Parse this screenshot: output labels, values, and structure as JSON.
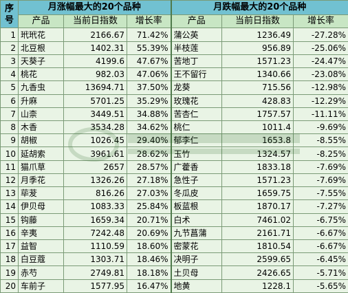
{
  "header": {
    "seq_label": "序号",
    "rise_title": "月涨幅最大的20个品种",
    "fall_title": "月跌幅最大的20个品种",
    "col_product": "产品",
    "col_index": "当前日指数",
    "col_rate": "增长率"
  },
  "rows": [
    {
      "n": "1",
      "rise_name": "玳玳花",
      "rise_index": "2166.67",
      "rise_rate": "71.42%",
      "fall_name": "蒲公英",
      "fall_index": "1236.49",
      "fall_rate": "-27.28%"
    },
    {
      "n": "2",
      "rise_name": "北豆根",
      "rise_index": "1402.31",
      "rise_rate": "55.39%",
      "fall_name": "半枝莲",
      "fall_index": "956.89",
      "fall_rate": "-25.06%"
    },
    {
      "n": "3",
      "rise_name": "天葵子",
      "rise_index": "4199.6",
      "rise_rate": "47.67%",
      "fall_name": "苦地丁",
      "fall_index": "1571.23",
      "fall_rate": "-24.47%"
    },
    {
      "n": "4",
      "rise_name": "桃花",
      "rise_index": "982.03",
      "rise_rate": "47.06%",
      "fall_name": "王不留行",
      "fall_index": "1340.66",
      "fall_rate": "-23.08%"
    },
    {
      "n": "5",
      "rise_name": "九香虫",
      "rise_index": "13694.71",
      "rise_rate": "37.50%",
      "fall_name": "龙葵",
      "fall_index": "715.56",
      "fall_rate": "-12.98%"
    },
    {
      "n": "6",
      "rise_name": "升麻",
      "rise_index": "5701.25",
      "rise_rate": "35.29%",
      "fall_name": "玫瑰花",
      "fall_index": "428.83",
      "fall_rate": "-12.29%"
    },
    {
      "n": "7",
      "rise_name": "山柰",
      "rise_index": "3449.51",
      "rise_rate": "34.88%",
      "fall_name": "苦杏仁",
      "fall_index": "1757.57",
      "fall_rate": "-11.11%"
    },
    {
      "n": "8",
      "rise_name": "木香",
      "rise_index": "3534.28",
      "rise_rate": "34.62%",
      "fall_name": "桃仁",
      "fall_index": "1011.4",
      "fall_rate": "-9.69%"
    },
    {
      "n": "9",
      "rise_name": "胡椒",
      "rise_index": "1026.45",
      "rise_rate": "29.40%",
      "fall_name": "郁李仁",
      "fall_index": "1653.8",
      "fall_rate": "-8.55%"
    },
    {
      "n": "10",
      "rise_name": "延胡索",
      "rise_index": "3961.61",
      "rise_rate": "28.62%",
      "fall_name": "玉竹",
      "fall_index": "1324.57",
      "fall_rate": "-8.25%"
    },
    {
      "n": "11",
      "rise_name": "猫爪草",
      "rise_index": "2657",
      "rise_rate": "28.57%",
      "fall_name": "广藿香",
      "fall_index": "1833.18",
      "fall_rate": "-7.69%"
    },
    {
      "n": "12",
      "rise_name": "月季花",
      "rise_index": "1326.26",
      "rise_rate": "27.18%",
      "fall_name": "急性子",
      "fall_index": "1571.23",
      "fall_rate": "-7.69%"
    },
    {
      "n": "13",
      "rise_name": "荜茇",
      "rise_index": "816.26",
      "rise_rate": "27.03%",
      "fall_name": "冬瓜皮",
      "fall_index": "1659.75",
      "fall_rate": "-7.55%"
    },
    {
      "n": "14",
      "rise_name": "伊贝母",
      "rise_index": "1083.33",
      "rise_rate": "25.84%",
      "fall_name": "板蓝根",
      "fall_index": "1870.17",
      "fall_rate": "-7.27%"
    },
    {
      "n": "15",
      "rise_name": "钩藤",
      "rise_index": "1659.34",
      "rise_rate": "20.71%",
      "fall_name": "白术",
      "fall_index": "7461.02",
      "fall_rate": "-6.75%"
    },
    {
      "n": "16",
      "rise_name": "辛夷",
      "rise_index": "7242.48",
      "rise_rate": "20.69%",
      "fall_name": "九节菖蒲",
      "fall_index": "2161.71",
      "fall_rate": "-6.67%"
    },
    {
      "n": "17",
      "rise_name": "益智",
      "rise_index": "1110.59",
      "rise_rate": "18.60%",
      "fall_name": "密蒙花",
      "fall_index": "1810.54",
      "fall_rate": "-6.67%"
    },
    {
      "n": "18",
      "rise_name": "白豆蔻",
      "rise_index": "1303.71",
      "rise_rate": "18.46%",
      "fall_name": "决明子",
      "fall_index": "2599.65",
      "fall_rate": "-6.45%"
    },
    {
      "n": "19",
      "rise_name": "赤芍",
      "rise_index": "2749.81",
      "rise_rate": "18.18%",
      "fall_name": "土贝母",
      "fall_index": "2426.65",
      "fall_rate": "-5.71%"
    },
    {
      "n": "20",
      "rise_name": "车前子",
      "rise_index": "1577.95",
      "rise_rate": "16.47%",
      "fall_name": "地黄",
      "fall_index": "1228.1",
      "fall_rate": "-5.65%"
    }
  ],
  "colors": {
    "header_bg": "#71c1d1",
    "cell_bg": "#e9f4e5",
    "border": "#7a9a76"
  }
}
